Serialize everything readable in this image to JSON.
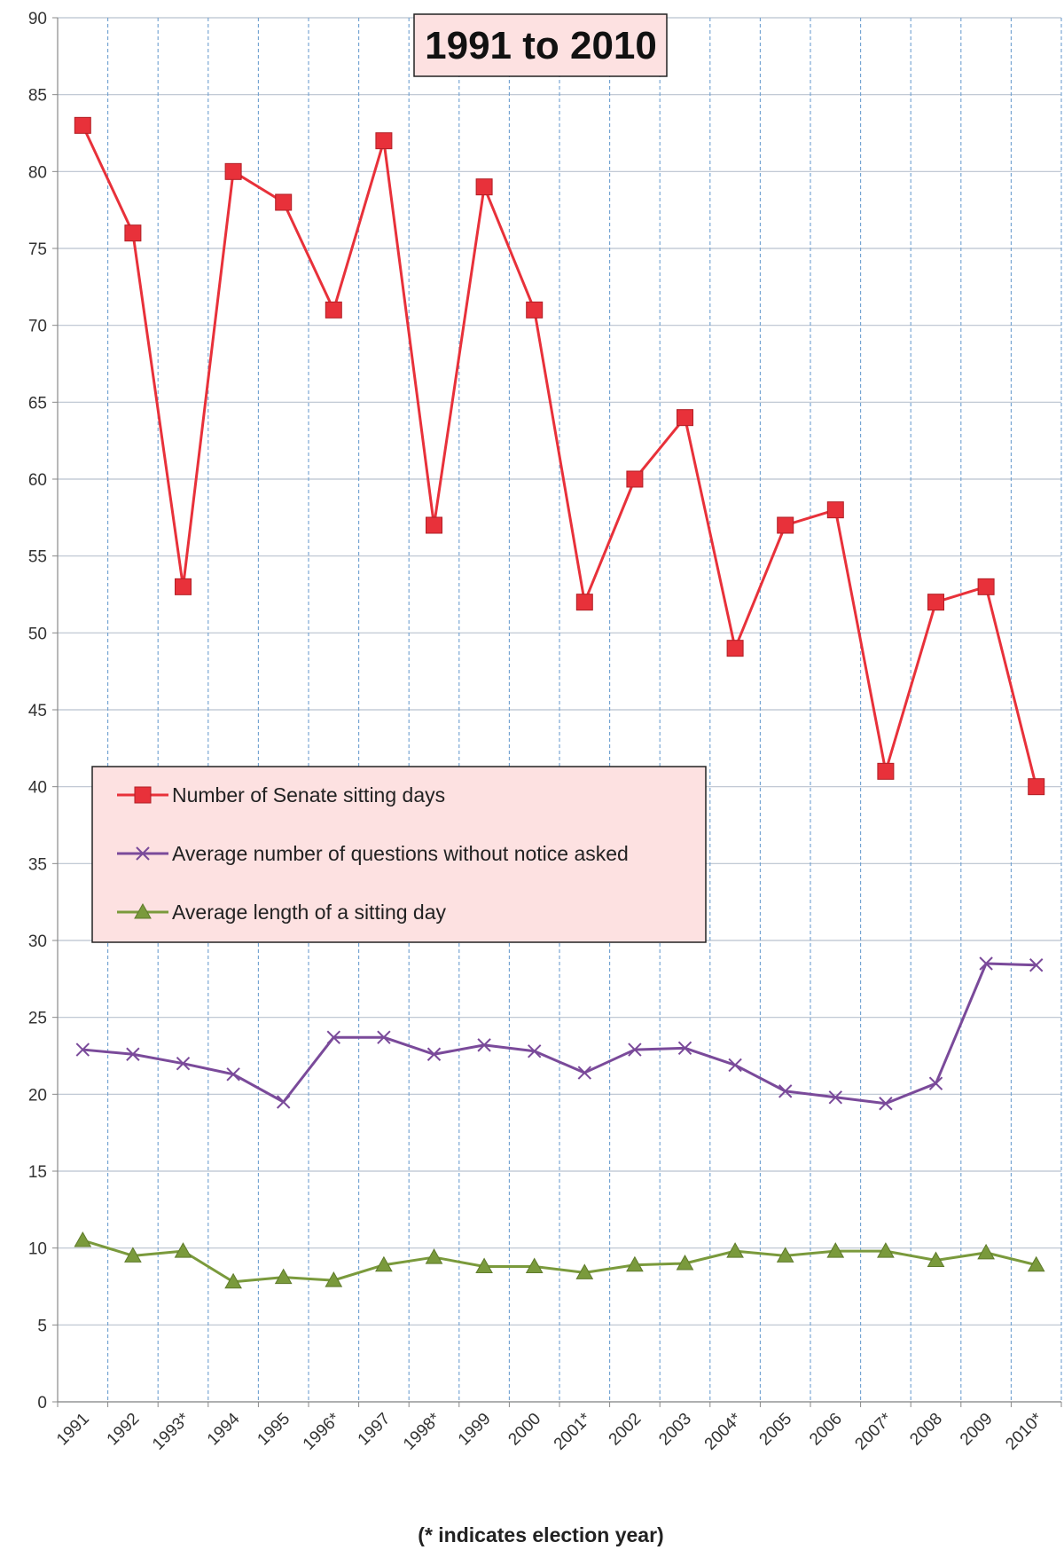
{
  "chart_data": {
    "type": "line",
    "title": "1991 to 2010",
    "footnote": "(* indicates election year)",
    "categories": [
      "1991",
      "1992",
      "1993*",
      "1994",
      "1995",
      "1996*",
      "1997",
      "1998*",
      "1999",
      "2000",
      "2001*",
      "2002",
      "2003",
      "2004*",
      "2005",
      "2006",
      "2007*",
      "2008",
      "2009",
      "2010*"
    ],
    "ylim": [
      0,
      90
    ],
    "yticks": [
      0,
      5,
      10,
      15,
      20,
      25,
      30,
      35,
      40,
      45,
      50,
      55,
      60,
      65,
      70,
      75,
      80,
      85,
      90
    ],
    "grid": true,
    "legend_position": "middle-left",
    "series": [
      {
        "name": "Number of Senate sitting days",
        "color": "#e8313a",
        "marker": "square",
        "values": [
          83,
          76,
          53,
          80,
          78,
          71,
          82,
          57,
          79,
          71,
          52,
          60,
          64,
          49,
          57,
          58,
          41,
          52,
          53,
          40
        ]
      },
      {
        "name": "Average number of questions without notice asked",
        "color": "#7a4a9a",
        "marker": "x",
        "values": [
          22.9,
          22.6,
          22.0,
          21.3,
          19.5,
          23.7,
          23.7,
          22.6,
          23.2,
          22.8,
          21.4,
          22.9,
          23.0,
          21.9,
          20.2,
          19.8,
          19.4,
          20.7,
          28.5,
          28.4
        ]
      },
      {
        "name": "Average length of a sitting day",
        "color": "#7a9a3c",
        "marker": "triangle",
        "values": [
          10.5,
          9.5,
          9.8,
          7.8,
          8.1,
          7.9,
          8.9,
          9.4,
          8.8,
          8.8,
          8.4,
          8.9,
          9.0,
          9.8,
          9.5,
          9.8,
          9.8,
          9.2,
          9.7,
          8.9
        ]
      }
    ]
  }
}
